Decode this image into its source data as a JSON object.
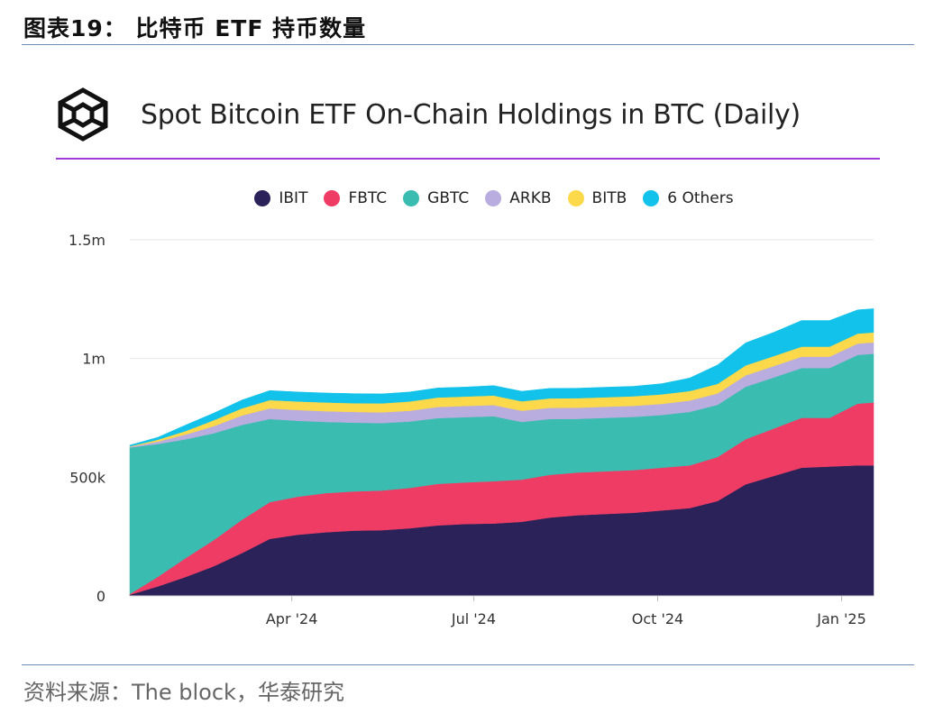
{
  "figure_title": "图表19： 比特币 ETF 持币数量",
  "source_note": "资料来源：The block，华泰研究",
  "logo": {
    "icon": "the-block-cube-icon"
  },
  "colors": {
    "IBIT": "#2a2258",
    "FBTC": "#ee3c64",
    "GBTC": "#3bbcb0",
    "ARKB": "#b9acde",
    "BITB": "#fbd94a",
    "6 Others": "#12c2ea",
    "rule": "#6f8fb8",
    "title_rule": "#9c3bd1",
    "grid": "#e6e6e6"
  },
  "chart_data": {
    "type": "area",
    "stacked": true,
    "title": "Spot Bitcoin ETF On-Chain Holdings in BTC (Daily)",
    "x_tick_labels": [
      "Apr '24",
      "Jul '24",
      "Oct '24",
      "Jan '25"
    ],
    "x_tick_dates": [
      "2024-04-01",
      "2024-07-01",
      "2024-10-01",
      "2025-01-01"
    ],
    "y_tick_labels": [
      "0",
      "500k",
      "1m",
      "1.5m"
    ],
    "y_tick_values": [
      0,
      500000,
      1000000,
      1500000
    ],
    "ylim": [
      0,
      1500000
    ],
    "xlim": [
      "2024-01-11",
      "2025-01-17"
    ],
    "grid": "horizontal",
    "legend_position": "top-center",
    "dates": [
      "2024-01-11",
      "2024-01-25",
      "2024-02-08",
      "2024-02-22",
      "2024-03-07",
      "2024-03-21",
      "2024-04-04",
      "2024-04-18",
      "2024-05-02",
      "2024-05-16",
      "2024-05-30",
      "2024-06-13",
      "2024-06-27",
      "2024-07-11",
      "2024-07-25",
      "2024-08-08",
      "2024-08-22",
      "2024-09-05",
      "2024-09-19",
      "2024-10-03",
      "2024-10-17",
      "2024-10-31",
      "2024-11-14",
      "2024-11-28",
      "2024-12-12",
      "2024-12-26",
      "2025-01-09",
      "2025-01-17"
    ],
    "series": [
      {
        "name": "IBIT",
        "values": [
          5000,
          40000,
          80000,
          125000,
          180000,
          240000,
          258000,
          268000,
          275000,
          277000,
          285000,
          297000,
          303000,
          305000,
          312000,
          330000,
          340000,
          345000,
          350000,
          360000,
          370000,
          400000,
          470000,
          505000,
          540000,
          545000,
          550000,
          550000
        ]
      },
      {
        "name": "FBTC",
        "values": [
          3000,
          40000,
          80000,
          110000,
          140000,
          155000,
          160000,
          165000,
          165000,
          167000,
          170000,
          175000,
          175000,
          178000,
          178000,
          180000,
          180000,
          180000,
          180000,
          180000,
          180000,
          185000,
          190000,
          200000,
          210000,
          205000,
          260000,
          265000
        ]
      },
      {
        "name": "GBTC",
        "values": [
          617000,
          560000,
          500000,
          450000,
          400000,
          350000,
          320000,
          300000,
          290000,
          284000,
          280000,
          277000,
          275000,
          274000,
          243000,
          235000,
          226000,
          225000,
          224000,
          222000,
          225000,
          220000,
          221000,
          215000,
          210000,
          210000,
          205000,
          205000
        ]
      },
      {
        "name": "ARKB",
        "values": [
          3000,
          10000,
          20000,
          30000,
          40000,
          45000,
          45000,
          45000,
          45000,
          45000,
          45000,
          47000,
          47000,
          47000,
          47000,
          47000,
          47000,
          47000,
          47000,
          47000,
          48000,
          48000,
          48000,
          48000,
          48000,
          48000,
          48000,
          48000
        ]
      },
      {
        "name": "BITB",
        "values": [
          2000,
          8000,
          15000,
          25000,
          30000,
          35000,
          36000,
          37000,
          37000,
          38000,
          39000,
          40000,
          40000,
          40000,
          40000,
          40000,
          40000,
          40000,
          40000,
          40000,
          40000,
          40000,
          42000,
          42000,
          42000,
          42000,
          42000,
          42000
        ]
      },
      {
        "name": "6 Others",
        "values": [
          5000,
          10000,
          25000,
          30000,
          35000,
          40000,
          40000,
          40000,
          40000,
          40000,
          40000,
          40000,
          40000,
          42000,
          42000,
          42000,
          42000,
          42000,
          42000,
          45000,
          55000,
          80000,
          95000,
          100000,
          110000,
          110000,
          100000,
          100000
        ]
      }
    ]
  }
}
